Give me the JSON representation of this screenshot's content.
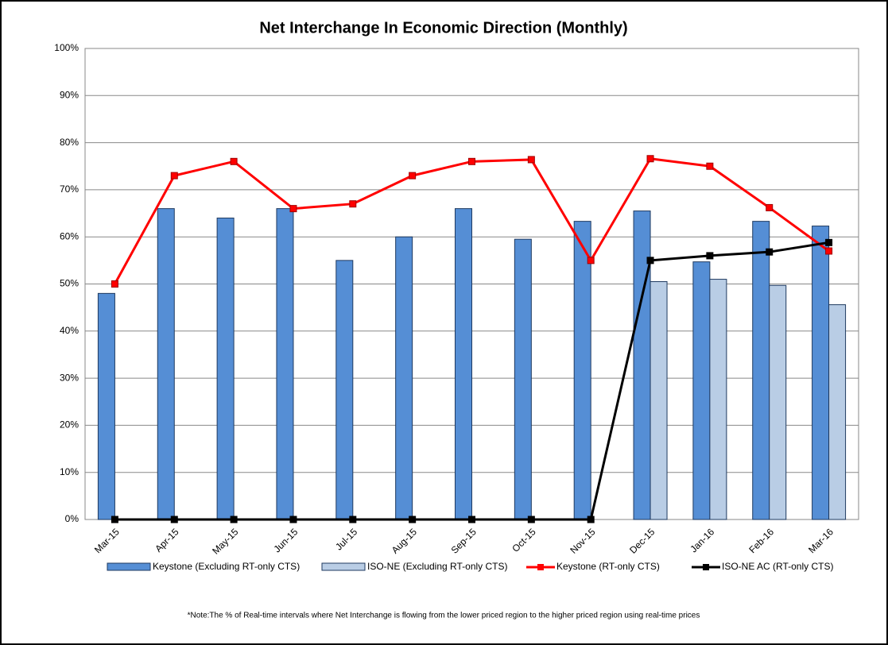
{
  "chart_data": {
    "type": "combo",
    "title": "Net Interchange In Economic Direction (Monthly)",
    "note": "*Note:The % of Real-time intervals where Net Interchange is flowing from the lower priced region to the higher priced region using real-time prices",
    "categories": [
      "Mar-15",
      "Apr-15",
      "May-15",
      "Jun-15",
      "Jul-15",
      "Aug-15",
      "Sep-15",
      "Oct-15",
      "Nov-15",
      "Dec-15",
      "Jan-16",
      "Feb-16",
      "Mar-16"
    ],
    "series": [
      {
        "name": "Keystone (Excluding RT-only CTS)",
        "type": "bar",
        "color": "#558ed5",
        "values": [
          48,
          66,
          64,
          66,
          55,
          60,
          66,
          59.5,
          63.3,
          65.5,
          54.7,
          63.3,
          62.3
        ]
      },
      {
        "name": "ISO-NE (Excluding RT-only CTS)",
        "type": "bar",
        "color": "#b9cde5",
        "values": [
          null,
          null,
          null,
          null,
          null,
          null,
          null,
          null,
          null,
          50.5,
          51,
          49.7,
          45.6
        ]
      },
      {
        "name": "Keystone (RT-only CTS)",
        "type": "line",
        "color": "#ff0000",
        "values": [
          50,
          73,
          76,
          66,
          67,
          73,
          76,
          76.4,
          55,
          76.6,
          75,
          66.2,
          57
        ]
      },
      {
        "name": "ISO-NE AC (RT-only CTS)",
        "type": "line",
        "color": "#000000",
        "values": [
          0,
          0,
          0,
          0,
          0,
          0,
          0,
          0,
          0,
          55,
          56,
          56.8,
          58.8
        ]
      }
    ],
    "ylim": [
      0,
      100
    ],
    "yticks": [
      {
        "value": 0,
        "label": "0%"
      },
      {
        "value": 10,
        "label": "10%"
      },
      {
        "value": 20,
        "label": "20%"
      },
      {
        "value": 30,
        "label": "30%"
      },
      {
        "value": 40,
        "label": "40%"
      },
      {
        "value": 50,
        "label": "50%"
      },
      {
        "value": 60,
        "label": "60%"
      },
      {
        "value": 70,
        "label": "70%"
      },
      {
        "value": 80,
        "label": "80%"
      },
      {
        "value": 90,
        "label": "90%"
      },
      {
        "value": 100,
        "label": "100%"
      }
    ],
    "grid": true,
    "legend": "bottom"
  }
}
